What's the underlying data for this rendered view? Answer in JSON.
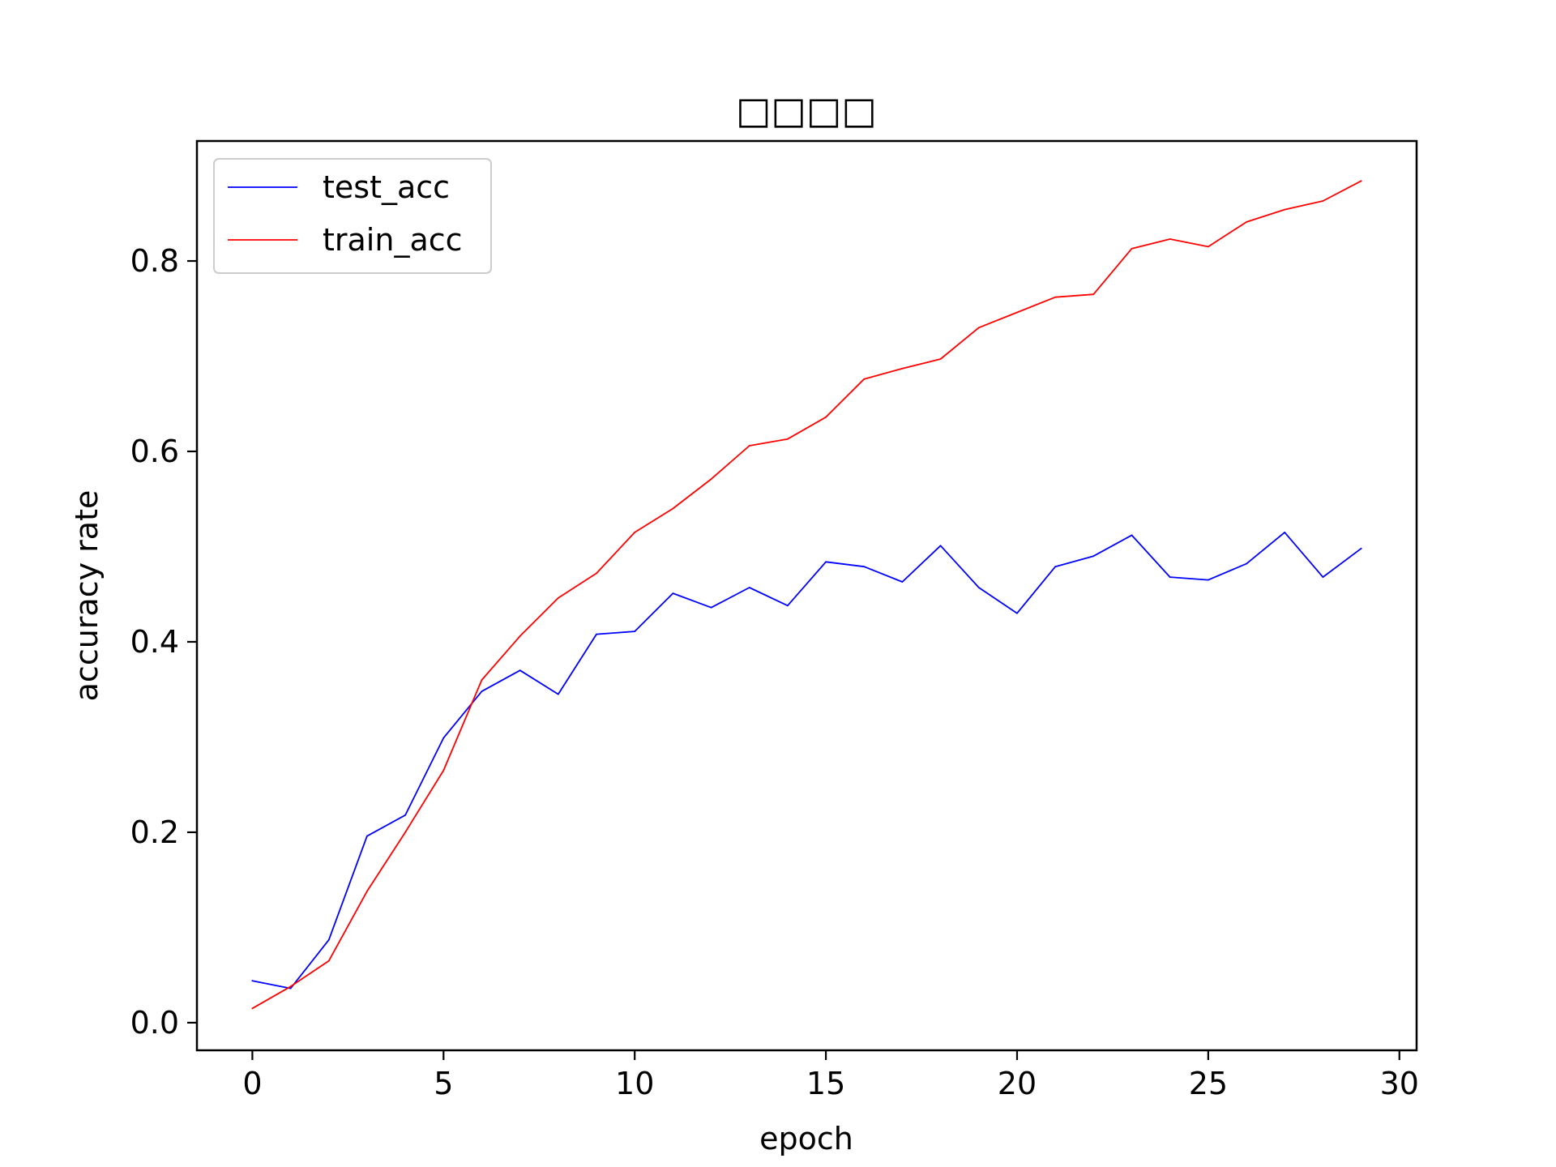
{
  "chart_data": {
    "type": "line",
    "title": "□□□□",
    "xlabel": "epoch",
    "ylabel": "accuracy rate",
    "xlim": [
      -1.45,
      30.45
    ],
    "ylim": [
      -0.029,
      0.926
    ],
    "xticks": [
      0,
      5,
      10,
      15,
      20,
      25,
      30
    ],
    "xtick_labels": [
      "0",
      "5",
      "10",
      "15",
      "20",
      "25",
      "30"
    ],
    "yticks": [
      0.0,
      0.2,
      0.4,
      0.6,
      0.8
    ],
    "ytick_labels": [
      "0.0",
      "0.2",
      "0.4",
      "0.6",
      "0.8"
    ],
    "grid": false,
    "legend": "top-left",
    "x": [
      0,
      1,
      2,
      3,
      4,
      5,
      6,
      7,
      8,
      9,
      10,
      11,
      12,
      13,
      14,
      15,
      16,
      17,
      18,
      19,
      20,
      21,
      22,
      23,
      24,
      25,
      26,
      27,
      28,
      29
    ],
    "series": [
      {
        "name": "test_acc",
        "color": "#0000ff",
        "values": [
          0.044,
          0.036,
          0.087,
          0.196,
          0.218,
          0.299,
          0.348,
          0.37,
          0.345,
          0.408,
          0.411,
          0.451,
          0.436,
          0.457,
          0.438,
          0.484,
          0.479,
          0.463,
          0.501,
          0.457,
          0.43,
          0.479,
          0.49,
          0.512,
          0.468,
          0.465,
          0.482,
          0.515,
          0.468,
          0.498
        ]
      },
      {
        "name": "train_acc",
        "color": "#ff0000",
        "values": [
          0.015,
          0.038,
          0.065,
          0.138,
          0.2,
          0.265,
          0.36,
          0.406,
          0.446,
          0.472,
          0.515,
          0.54,
          0.571,
          0.606,
          0.613,
          0.636,
          0.676,
          0.687,
          0.697,
          0.73,
          0.746,
          0.762,
          0.765,
          0.813,
          0.823,
          0.815,
          0.841,
          0.854,
          0.863,
          0.884
        ]
      }
    ]
  }
}
